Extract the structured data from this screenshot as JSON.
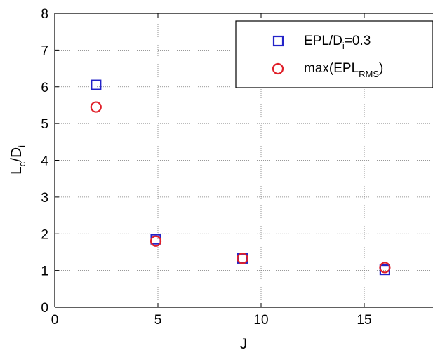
{
  "chart_data": {
    "type": "scatter",
    "xlabel": {
      "main": "J"
    },
    "ylabel": {
      "main": "L",
      "sub1": "c",
      "mid": "/D",
      "sub2": "i"
    },
    "xlim": [
      0,
      18
    ],
    "ylim": [
      0,
      8
    ],
    "x_ticks": [
      0,
      5,
      10,
      15
    ],
    "y_ticks": [
      0,
      1,
      2,
      3,
      4,
      5,
      6,
      7,
      8
    ],
    "grid": true,
    "legend_position": "top-right",
    "series": [
      {
        "name": "EPL/D_i=0.3",
        "marker": "square",
        "color": "#2323c8",
        "legend": {
          "pre": "EPL/D",
          "sub": "i",
          "post": "=0.3"
        },
        "x": [
          2.0,
          4.9,
          9.1,
          16.0
        ],
        "y": [
          6.05,
          1.85,
          1.33,
          1.02
        ]
      },
      {
        "name": "max(EPL_RMS)",
        "marker": "circle",
        "color": "#e0202a",
        "legend": {
          "pre": "max(EPL",
          "sub": "RMS",
          "post": ")"
        },
        "x": [
          2.0,
          4.9,
          9.1,
          16.0
        ],
        "y": [
          5.45,
          1.8,
          1.33,
          1.08
        ]
      }
    ]
  }
}
